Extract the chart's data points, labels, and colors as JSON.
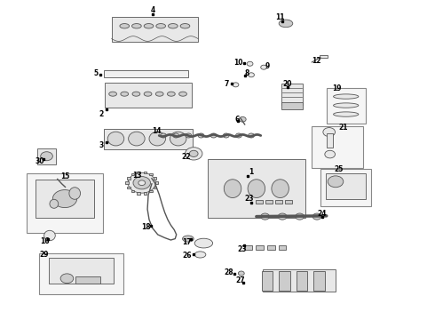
{
  "bg_color": "#ffffff",
  "line_color": "#555555",
  "fill_color": "#e8e8e8",
  "dark_fill": "#cccccc",
  "text_color": "#000000"
}
